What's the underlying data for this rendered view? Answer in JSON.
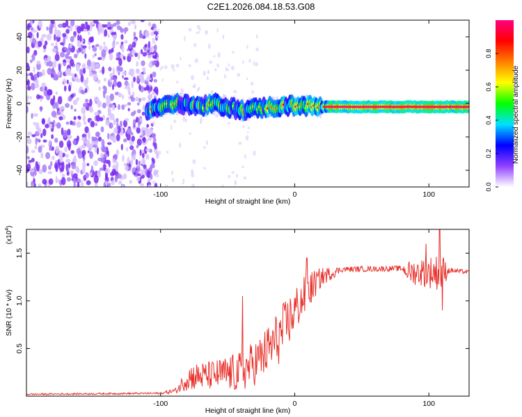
{
  "title": "C2E1.2026.084.18.53.G08",
  "chart_data": [
    {
      "type": "heatmap",
      "description_role": "spectrogram",
      "xlabel": "Height of straight line (km)",
      "ylabel": "Frequency (Hz)",
      "xlim": [
        -200,
        130
      ],
      "ylim": [
        -50,
        50
      ],
      "xticks": [
        -100,
        0,
        100
      ],
      "yticks": [
        -40,
        -20,
        0,
        20,
        40
      ],
      "noise_region_x": [
        -200,
        -110
      ],
      "signal_start_x": -110,
      "signal_ridge": [
        {
          "x": -110,
          "y": -4
        },
        {
          "x": -100,
          "y": -2
        },
        {
          "x": -90,
          "y": 0
        },
        {
          "x": -80,
          "y": -1
        },
        {
          "x": -70,
          "y": -2
        },
        {
          "x": -60,
          "y": 0
        },
        {
          "x": -50,
          "y": -2
        },
        {
          "x": -40,
          "y": -4
        },
        {
          "x": -30,
          "y": -3
        },
        {
          "x": -20,
          "y": -2
        },
        {
          "x": -10,
          "y": -2
        },
        {
          "x": 0,
          "y": -1
        },
        {
          "x": 20,
          "y": -2
        },
        {
          "x": 50,
          "y": -2
        },
        {
          "x": 80,
          "y": -2
        },
        {
          "x": 100,
          "y": -2
        },
        {
          "x": 130,
          "y": -2
        }
      ],
      "colorbar": {
        "label": "Normalized spectral amplitude",
        "range": [
          0,
          1
        ],
        "ticks": [
          "0.0",
          "0.2",
          "0.4",
          "0.6",
          "0.8"
        ],
        "colors": [
          "#ffffff",
          "#9040ff",
          "#0000ff",
          "#00e0ff",
          "#00ff00",
          "#ffff00",
          "#ff8000",
          "#ff0000",
          "#ff0080"
        ]
      }
    },
    {
      "type": "line",
      "xlabel": "Height of straight line (km)",
      "ylabel": "SNR (10 * v/v)",
      "y_scale_label": "(x10",
      "y_scale_exponent": "4",
      "xlim": [
        -200,
        130
      ],
      "ylim": [
        0,
        1.75
      ],
      "xticks": [
        -100,
        0,
        100
      ],
      "yticks": [
        0.5,
        1.0,
        1.5
      ],
      "ytick_labels": [
        "0.5",
        "1.0",
        "1.5"
      ],
      "line_color": "#e8302a",
      "series_profile": [
        {
          "x": -200,
          "y": 0.02,
          "noise": 0.008
        },
        {
          "x": -100,
          "y": 0.03,
          "noise": 0.01
        },
        {
          "x": -88,
          "y": 0.06,
          "noise": 0.03
        },
        {
          "x": -80,
          "y": 0.2,
          "noise": 0.14
        },
        {
          "x": -60,
          "y": 0.22,
          "noise": 0.16
        },
        {
          "x": -40,
          "y": 0.25,
          "noise": 0.22
        },
        {
          "x": -25,
          "y": 0.4,
          "noise": 0.25
        },
        {
          "x": -10,
          "y": 0.65,
          "noise": 0.3
        },
        {
          "x": 0,
          "y": 0.9,
          "noise": 0.25
        },
        {
          "x": 10,
          "y": 1.1,
          "noise": 0.2
        },
        {
          "x": 20,
          "y": 1.25,
          "noise": 0.1
        },
        {
          "x": 35,
          "y": 1.33,
          "noise": 0.03
        },
        {
          "x": 80,
          "y": 1.34,
          "noise": 0.03
        },
        {
          "x": 85,
          "y": 1.3,
          "noise": 0.12
        },
        {
          "x": 110,
          "y": 1.3,
          "noise": 0.2
        },
        {
          "x": 115,
          "y": 1.32,
          "noise": 0.03
        },
        {
          "x": 130,
          "y": 1.3,
          "noise": 0.02
        }
      ],
      "spikes": [
        {
          "x": -39,
          "y": 1.05
        },
        {
          "x": 9,
          "y": 1.45
        },
        {
          "x": 98,
          "y": 1.6
        },
        {
          "x": 108,
          "y": 1.75
        },
        {
          "x": 110,
          "y": 0.9
        }
      ]
    }
  ]
}
